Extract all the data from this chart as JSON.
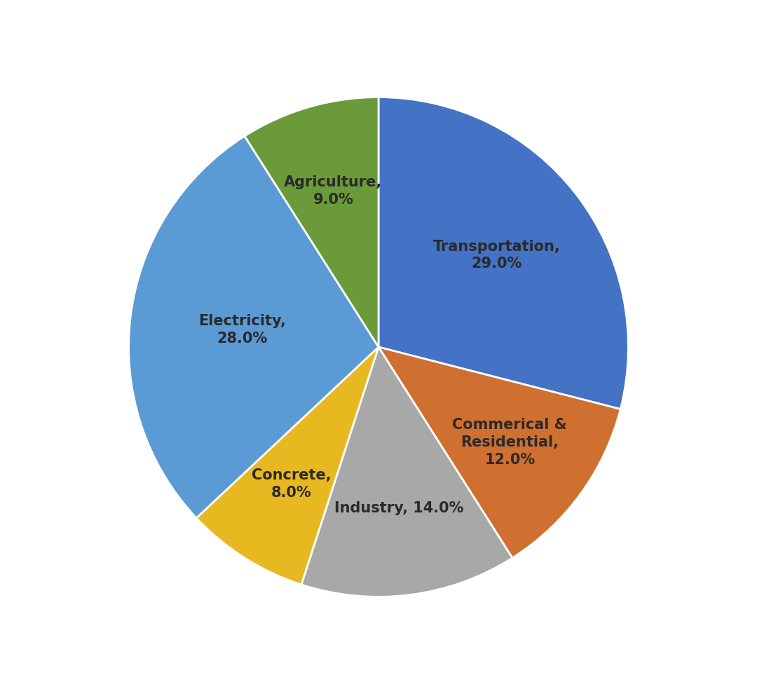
{
  "labels": [
    "Transportation",
    "Commerical &\nResidential",
    "Industry",
    "Concrete",
    "Electricity",
    "Agriculture"
  ],
  "values": [
    29.0,
    12.0,
    14.0,
    8.0,
    28.0,
    9.0
  ],
  "colors": [
    "#4472C4",
    "#D07030",
    "#A8A8A8",
    "#E8B820",
    "#5B9BD5",
    "#6B9A3A"
  ],
  "label_texts": [
    "Transportation,\n29.0%",
    "Commerical &\nResidential,\n12.0%",
    "Industry, 14.0%",
    "Concrete,\n8.0%",
    "Electricity,\n28.0%",
    "Agriculture,\n9.0%"
  ],
  "label_radii": [
    0.6,
    0.65,
    0.65,
    0.65,
    0.55,
    0.65
  ],
  "startangle": 90,
  "background_color": "#ffffff",
  "text_color": "#2a2a2a",
  "label_fontsize": 15,
  "label_fontweight": "bold"
}
